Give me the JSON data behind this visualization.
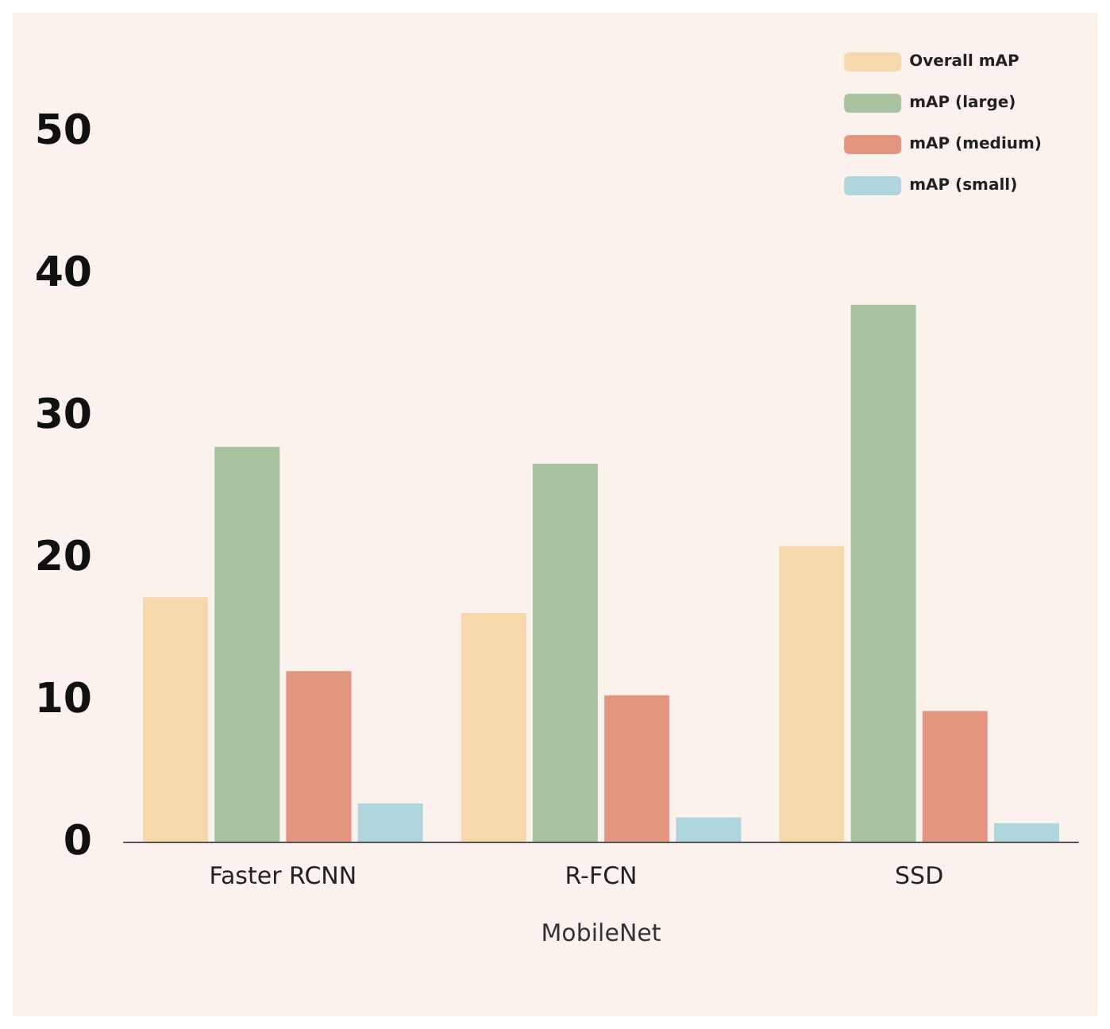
{
  "chart_data": {
    "type": "bar",
    "xlabel": "MobileNet",
    "categories": [
      "Faster RCNN",
      "R-FCN",
      "SSD"
    ],
    "series": [
      {
        "name": "Overall mAP",
        "color": "#f5d9ac",
        "values": [
          17.2,
          16.1,
          20.8
        ]
      },
      {
        "name": "mAP (large)",
        "color": "#a9c3a0",
        "values": [
          27.8,
          26.6,
          37.8
        ]
      },
      {
        "name": "mAP (medium)",
        "color": "#e39580",
        "values": [
          12.0,
          10.3,
          9.2
        ]
      },
      {
        "name": "mAP (small)",
        "color": "#aed6dc",
        "values": [
          2.7,
          1.7,
          1.3
        ]
      }
    ],
    "ylim": [
      0,
      55
    ],
    "yticks": [
      0,
      10,
      20,
      30,
      40,
      50
    ],
    "grid": false,
    "legend": "top right"
  }
}
